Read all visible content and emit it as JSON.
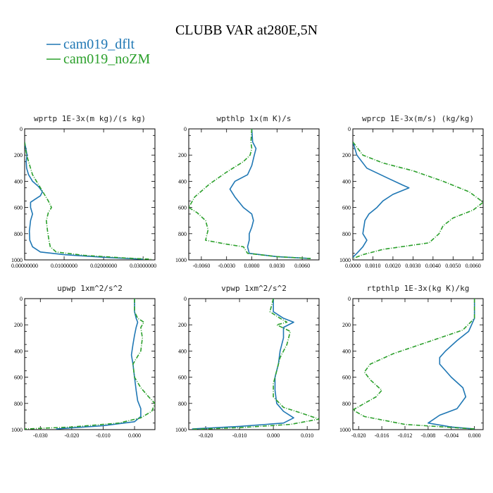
{
  "figure": {
    "title": "CLUBB VAR at280E,5N"
  },
  "colors": {
    "dflt": "#1f77b4",
    "noZM": "#2ca02c"
  },
  "legend": [
    {
      "label": "cam019_dflt",
      "color": "#1f77b4",
      "dash": ""
    },
    {
      "label": "cam019_noZM",
      "color": "#2ca02c",
      "dash": "6,2,1,2"
    }
  ],
  "chart_data": [
    {
      "type": "line",
      "title": "wprtp  1E-3x(m kg)/(s kg)",
      "xlim": [
        0,
        0.033
      ],
      "ylim": [
        0,
        1000
      ],
      "y_inverted": true,
      "xticks": [
        "0.00000000",
        "0.01000000",
        "0.02000000",
        "0.03000000"
      ],
      "xtick_values": [
        0,
        0.01,
        0.02,
        0.03
      ],
      "yticks": [
        0,
        200,
        400,
        600,
        800,
        1000
      ],
      "series": [
        {
          "name": "cam019_dflt",
          "points": [
            [
              0,
              100
            ],
            [
              0.0003,
              150
            ],
            [
              0.0006,
              200
            ],
            [
              0.0004,
              250
            ],
            [
              0.0005,
              300
            ],
            [
              0.001,
              350
            ],
            [
              0.002,
              400
            ],
            [
              0.0035,
              440
            ],
            [
              0.0045,
              480
            ],
            [
              0.004,
              510
            ],
            [
              0.0025,
              540
            ],
            [
              0.0015,
              560
            ],
            [
              0.0015,
              600
            ],
            [
              0.002,
              650
            ],
            [
              0.0015,
              700
            ],
            [
              0.0012,
              780
            ],
            [
              0.0013,
              850
            ],
            [
              0.002,
              900
            ],
            [
              0.004,
              940
            ],
            [
              0.01,
              960
            ],
            [
              0.02,
              980
            ],
            [
              0.03,
              995
            ]
          ]
        },
        {
          "name": "cam019_noZM",
          "points": [
            [
              0,
              100
            ],
            [
              0.0002,
              150
            ],
            [
              0.0005,
              200
            ],
            [
              0.001,
              250
            ],
            [
              0.0015,
              300
            ],
            [
              0.002,
              350
            ],
            [
              0.003,
              400
            ],
            [
              0.004,
              450
            ],
            [
              0.005,
              500
            ],
            [
              0.006,
              550
            ],
            [
              0.0068,
              600
            ],
            [
              0.006,
              640
            ],
            [
              0.0055,
              700
            ],
            [
              0.0058,
              780
            ],
            [
              0.0062,
              860
            ],
            [
              0.0065,
              900
            ],
            [
              0.008,
              940
            ],
            [
              0.015,
              965
            ],
            [
              0.025,
              985
            ],
            [
              0.032,
              995
            ]
          ]
        }
      ]
    },
    {
      "type": "line",
      "title": "wpthlp  1x(m K)/s",
      "xlim": [
        -0.0075,
        0.008
      ],
      "ylim": [
        0,
        1000
      ],
      "y_inverted": true,
      "xticks": [
        "-0.0060",
        "-0.0030",
        "0.0000",
        "0.0030",
        "0.0060"
      ],
      "xtick_values": [
        -0.006,
        -0.003,
        0,
        0.003,
        0.006
      ],
      "yticks": [
        0,
        200,
        400,
        600,
        800,
        1000
      ],
      "series": [
        {
          "name": "cam019_dflt",
          "points": [
            [
              0,
              0
            ],
            [
              0.0001,
              100
            ],
            [
              0.0005,
              150
            ],
            [
              0.0003,
              200
            ],
            [
              0,
              280
            ],
            [
              -0.0005,
              350
            ],
            [
              -0.002,
              400
            ],
            [
              -0.0026,
              460
            ],
            [
              -0.002,
              520
            ],
            [
              -0.001,
              600
            ],
            [
              0,
              650
            ],
            [
              0.0002,
              700
            ],
            [
              0,
              750
            ],
            [
              -0.0003,
              800
            ],
            [
              -0.0003,
              850
            ],
            [
              -0.0005,
              900
            ],
            [
              -0.0003,
              950
            ],
            [
              0.003,
              975
            ],
            [
              0.007,
              990
            ]
          ]
        },
        {
          "name": "cam019_noZM",
          "points": [
            [
              0,
              0
            ],
            [
              -0.0001,
              100
            ],
            [
              0,
              150
            ],
            [
              -0.0002,
              200
            ],
            [
              -0.001,
              250
            ],
            [
              -0.003,
              330
            ],
            [
              -0.005,
              420
            ],
            [
              -0.0068,
              520
            ],
            [
              -0.0075,
              600
            ],
            [
              -0.0065,
              640
            ],
            [
              -0.0055,
              700
            ],
            [
              -0.0052,
              770
            ],
            [
              -0.0055,
              850
            ],
            [
              -0.003,
              880
            ],
            [
              -0.001,
              900
            ],
            [
              -0.0005,
              950
            ],
            [
              0.003,
              975
            ],
            [
              0.007,
              990
            ]
          ]
        }
      ]
    },
    {
      "type": "line",
      "title": "wprcp  1E-3x(m/s) (kg/kg)",
      "xlim": [
        0,
        0.0065
      ],
      "ylim": [
        0,
        1000
      ],
      "y_inverted": true,
      "xticks": [
        "0.0000",
        "0.0010",
        "0.0020",
        "0.0030",
        "0.0040",
        "0.0050",
        "0.0060"
      ],
      "xtick_values": [
        0,
        0.001,
        0.002,
        0.003,
        0.004,
        0.005,
        0.006
      ],
      "yticks": [
        0,
        200,
        400,
        600,
        800,
        1000
      ],
      "series": [
        {
          "name": "cam019_dflt",
          "points": [
            [
              0,
              100
            ],
            [
              0.0002,
              200
            ],
            [
              0.0007,
              300
            ],
            [
              0.0018,
              380
            ],
            [
              0.0025,
              430
            ],
            [
              0.0028,
              450
            ],
            [
              0.002,
              500
            ],
            [
              0.0015,
              550
            ],
            [
              0.0012,
              600
            ],
            [
              0.0008,
              650
            ],
            [
              0.0006,
              700
            ],
            [
              0.0005,
              800
            ],
            [
              0.0007,
              850
            ],
            [
              0.0005,
              900
            ],
            [
              0.0002,
              950
            ],
            [
              0,
              980
            ]
          ]
        },
        {
          "name": "cam019_noZM",
          "points": [
            [
              0,
              100
            ],
            [
              0.0005,
              200
            ],
            [
              0.0015,
              260
            ],
            [
              0.003,
              320
            ],
            [
              0.0045,
              400
            ],
            [
              0.0058,
              480
            ],
            [
              0.0065,
              560
            ],
            [
              0.006,
              620
            ],
            [
              0.005,
              680
            ],
            [
              0.0045,
              740
            ],
            [
              0.0043,
              800
            ],
            [
              0.0038,
              870
            ],
            [
              0.0015,
              920
            ],
            [
              0.0005,
              960
            ],
            [
              0,
              990
            ]
          ]
        }
      ]
    },
    {
      "type": "line",
      "title": "upwp  1xm^2/s^2",
      "xlim": [
        -0.035,
        0.0065
      ],
      "ylim": [
        0,
        1000
      ],
      "y_inverted": true,
      "xticks": [
        "-0.030",
        "-0.020",
        "-0.010",
        "0.000"
      ],
      "xtick_values": [
        -0.03,
        -0.02,
        -0.01,
        0
      ],
      "yticks": [
        0,
        200,
        400,
        600,
        800,
        1000
      ],
      "series": [
        {
          "name": "cam019_dflt",
          "points": [
            [
              0,
              0
            ],
            [
              0,
              100
            ],
            [
              0.0005,
              150
            ],
            [
              0.001,
              180
            ],
            [
              0.0005,
              220
            ],
            [
              0,
              280
            ],
            [
              -0.0005,
              350
            ],
            [
              -0.001,
              430
            ],
            [
              -0.0005,
              500
            ],
            [
              0,
              600
            ],
            [
              0.0005,
              700
            ],
            [
              0.001,
              780
            ],
            [
              0.002,
              840
            ],
            [
              0.002,
              900
            ],
            [
              0,
              940
            ],
            [
              -0.01,
              970
            ],
            [
              -0.025,
              995
            ]
          ]
        },
        {
          "name": "cam019_noZM",
          "points": [
            [
              0,
              0
            ],
            [
              0,
              100
            ],
            [
              0.001,
              150
            ],
            [
              0.003,
              180
            ],
            [
              0.002,
              220
            ],
            [
              0.0025,
              300
            ],
            [
              0.002,
              400
            ],
            [
              -0.0005,
              500
            ],
            [
              0,
              600
            ],
            [
              0.002,
              680
            ],
            [
              0.0045,
              750
            ],
            [
              0.0065,
              800
            ],
            [
              0.0055,
              860
            ],
            [
              0.002,
              910
            ],
            [
              -0.005,
              950
            ],
            [
              -0.02,
              980
            ],
            [
              -0.035,
              995
            ]
          ]
        }
      ]
    },
    {
      "type": "line",
      "title": "vpwp  1xm^2/s^2",
      "xlim": [
        -0.025,
        0.0135
      ],
      "ylim": [
        0,
        1000
      ],
      "y_inverted": true,
      "xticks": [
        "-0.020",
        "-0.010",
        "0.000",
        "0.010"
      ],
      "xtick_values": [
        -0.02,
        -0.01,
        0,
        0.01
      ],
      "yticks": [
        0,
        200,
        400,
        600,
        800,
        1000
      ],
      "series": [
        {
          "name": "cam019_dflt",
          "points": [
            [
              0,
              0
            ],
            [
              0,
              100
            ],
            [
              0.003,
              150
            ],
            [
              0.006,
              180
            ],
            [
              0.003,
              220
            ],
            [
              0.003,
              300
            ],
            [
              0.002,
              400
            ],
            [
              0.0015,
              500
            ],
            [
              0.0005,
              600
            ],
            [
              0.0005,
              700
            ],
            [
              0.001,
              800
            ],
            [
              0.003,
              860
            ],
            [
              0.006,
              910
            ],
            [
              0.003,
              950
            ],
            [
              -0.01,
              975
            ],
            [
              -0.024,
              995
            ]
          ]
        },
        {
          "name": "cam019_noZM",
          "points": [
            [
              0,
              0
            ],
            [
              -0.001,
              100
            ],
            [
              0.002,
              150
            ],
            [
              0.004,
              180
            ],
            [
              0.001,
              200
            ],
            [
              0.005,
              250
            ],
            [
              0.004,
              350
            ],
            [
              0.002,
              450
            ],
            [
              0.001,
              550
            ],
            [
              0,
              650
            ],
            [
              0,
              750
            ],
            [
              0.003,
              830
            ],
            [
              0.009,
              880
            ],
            [
              0.0135,
              920
            ],
            [
              0.005,
              960
            ],
            [
              -0.01,
              985
            ],
            [
              -0.024,
              998
            ]
          ]
        }
      ]
    },
    {
      "type": "line",
      "title": "rtpthlp  1E-3x(kg K)/kg",
      "xlim": [
        -0.021,
        0.0015
      ],
      "ylim": [
        0,
        1000
      ],
      "y_inverted": true,
      "xticks": [
        "-0.020",
        "-0.016",
        "-0.012",
        "-0.008",
        "-0.004",
        "0.000"
      ],
      "xtick_values": [
        -0.02,
        -0.016,
        -0.012,
        -0.008,
        -0.004,
        0
      ],
      "yticks": [
        0,
        200,
        400,
        600,
        800,
        1000
      ],
      "series": [
        {
          "name": "cam019_dflt",
          "points": [
            [
              0,
              0
            ],
            [
              0,
              150
            ],
            [
              -0.001,
              250
            ],
            [
              -0.003,
              320
            ],
            [
              -0.005,
              400
            ],
            [
              -0.006,
              450
            ],
            [
              -0.006,
              500
            ],
            [
              -0.004,
              600
            ],
            [
              -0.002,
              680
            ],
            [
              -0.0015,
              750
            ],
            [
              -0.003,
              840
            ],
            [
              -0.006,
              890
            ],
            [
              -0.008,
              950
            ],
            [
              -0.004,
              980
            ],
            [
              0,
              995
            ]
          ]
        },
        {
          "name": "cam019_noZM",
          "points": [
            [
              0,
              0
            ],
            [
              0,
              150
            ],
            [
              -0.002,
              240
            ],
            [
              -0.008,
              330
            ],
            [
              -0.014,
              420
            ],
            [
              -0.018,
              500
            ],
            [
              -0.019,
              560
            ],
            [
              -0.018,
              620
            ],
            [
              -0.016,
              700
            ],
            [
              -0.017,
              750
            ],
            [
              -0.019,
              800
            ],
            [
              -0.021,
              850
            ],
            [
              -0.019,
              900
            ],
            [
              -0.012,
              960
            ],
            [
              0,
              995
            ]
          ]
        }
      ]
    }
  ]
}
